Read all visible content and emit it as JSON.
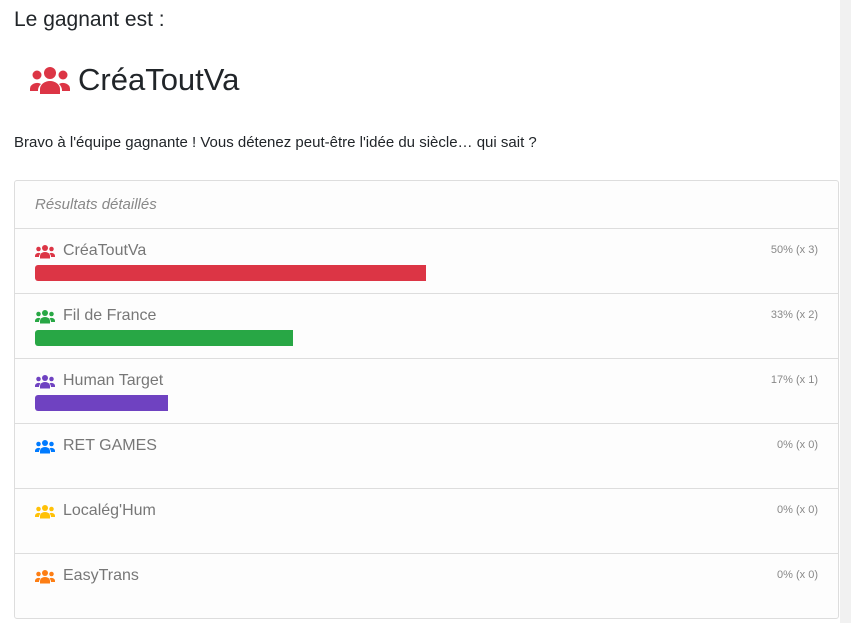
{
  "header": {
    "title": "Le gagnant est :",
    "winner": "CréaToutVa",
    "winner_color": "#dc3545",
    "message": "Bravo à l'équipe gagnante ! Vous détenez peut-être l'idée du siècle… qui sait ?"
  },
  "results": {
    "heading": "Résultats détaillés",
    "teams": [
      {
        "name": "CréaToutVa",
        "label": "50% (x 3)",
        "percent": 50,
        "color": "#dc3545",
        "icon": "users-icon"
      },
      {
        "name": "Fil de France",
        "label": "33% (x 2)",
        "percent": 33,
        "color": "#28a745",
        "icon": "users-icon"
      },
      {
        "name": "Human Target",
        "label": "17% (x 1)",
        "percent": 17,
        "color": "#6f42c1",
        "icon": "users-icon"
      },
      {
        "name": "RET GAMES",
        "label": "0% (x 0)",
        "percent": 0,
        "color": "#007bff",
        "icon": "users-icon"
      },
      {
        "name": "Localég'Hum",
        "label": "0% (x 0)",
        "percent": 0,
        "color": "#ffc107",
        "icon": "users-icon"
      },
      {
        "name": "EasyTrans",
        "label": "0% (x 0)",
        "percent": 0,
        "color": "#fd7e14",
        "icon": "users-icon"
      }
    ]
  }
}
